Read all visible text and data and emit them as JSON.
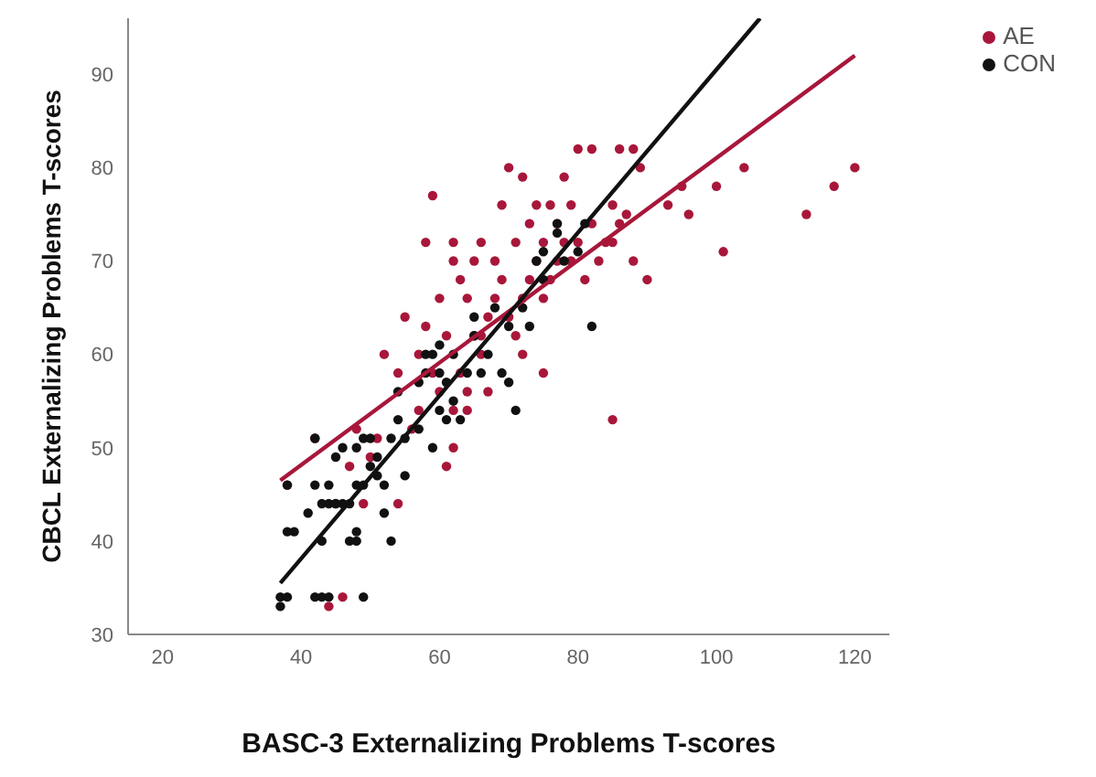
{
  "chart_data": {
    "type": "scatter",
    "xlabel": "BASC-3 Externalizing Problems T-scores",
    "ylabel": "CBCL Externalizing Problems T-scores",
    "xlim": [
      15,
      125
    ],
    "ylim": [
      30,
      96
    ],
    "xticks": [
      20,
      40,
      60,
      80,
      100,
      120
    ],
    "yticks": [
      30,
      40,
      50,
      60,
      70,
      80,
      90
    ],
    "grid": false,
    "legend": "top right",
    "marker": "circle",
    "series": [
      {
        "name": "AE",
        "color": "#a8173a",
        "x": [
          38,
          42,
          44,
          45,
          46,
          47,
          48,
          49,
          50,
          51,
          52,
          54,
          54,
          55,
          56,
          57,
          57,
          58,
          58,
          59,
          59,
          60,
          60,
          61,
          61,
          62,
          62,
          62,
          63,
          63,
          64,
          64,
          65,
          65,
          66,
          66,
          67,
          67,
          68,
          68,
          69,
          69,
          70,
          70,
          71,
          71,
          72,
          72,
          73,
          73,
          74,
          74,
          75,
          75,
          76,
          76,
          77,
          77,
          78,
          78,
          79,
          79,
          80,
          80,
          81,
          82,
          82,
          83,
          84,
          85,
          85,
          86,
          86,
          87,
          88,
          88,
          89,
          90,
          93,
          95,
          96,
          100,
          101,
          104,
          113,
          117,
          120,
          62,
          64,
          66,
          72,
          75,
          85
        ],
        "values": [
          46,
          51,
          33,
          44,
          34,
          48,
          52,
          44,
          49,
          51,
          60,
          44,
          58,
          64,
          52,
          54,
          60,
          63,
          72,
          58,
          77,
          56,
          66,
          48,
          62,
          50,
          70,
          72,
          58,
          68,
          54,
          66,
          62,
          70,
          60,
          72,
          56,
          64,
          66,
          70,
          68,
          76,
          80,
          64,
          72,
          62,
          79,
          66,
          68,
          74,
          70,
          76,
          66,
          72,
          68,
          76,
          70,
          74,
          72,
          79,
          70,
          76,
          72,
          82,
          68,
          74,
          82,
          70,
          72,
          76,
          53,
          74,
          82,
          75,
          70,
          82,
          80,
          68,
          76,
          78,
          75,
          78,
          71,
          80,
          75,
          78,
          80,
          54,
          56,
          62,
          60,
          58,
          72
        ]
      },
      {
        "name": "CON",
        "color": "#111111",
        "x": [
          37,
          37,
          38,
          38,
          39,
          38,
          41,
          42,
          42,
          43,
          43,
          42,
          43,
          44,
          44,
          44,
          45,
          45,
          46,
          46,
          47,
          47,
          48,
          48,
          48,
          48,
          49,
          49,
          49,
          50,
          50,
          51,
          51,
          52,
          52,
          53,
          53,
          54,
          54,
          55,
          55,
          57,
          57,
          58,
          58,
          59,
          59,
          60,
          60,
          60,
          61,
          61,
          62,
          62,
          63,
          64,
          65,
          65,
          66,
          67,
          68,
          69,
          70,
          70,
          71,
          72,
          73,
          74,
          75,
          75,
          77,
          77,
          78,
          80,
          81,
          82
        ],
        "values": [
          34,
          33,
          34,
          41,
          41,
          46,
          43,
          46,
          51,
          44,
          40,
          34,
          34,
          34,
          44,
          46,
          44,
          49,
          44,
          50,
          44,
          40,
          41,
          40,
          46,
          50,
          34,
          46,
          51,
          48,
          51,
          49,
          47,
          46,
          43,
          40,
          51,
          53,
          56,
          51,
          47,
          52,
          57,
          58,
          60,
          50,
          60,
          54,
          58,
          61,
          53,
          57,
          55,
          60,
          53,
          58,
          64,
          62,
          58,
          60,
          65,
          58,
          63,
          57,
          54,
          65,
          63,
          70,
          68,
          71,
          74,
          73,
          70,
          71,
          74,
          63
        ]
      },
      {
        "type": "line",
        "marker": "none",
        "color": "#a8173a",
        "x": [
          37,
          120
        ],
        "values": [
          46.5,
          92
        ]
      },
      {
        "type": "line",
        "marker": "none",
        "color": "#111111",
        "x": [
          37,
          106.3
        ],
        "values": [
          35.5,
          96
        ]
      }
    ]
  }
}
